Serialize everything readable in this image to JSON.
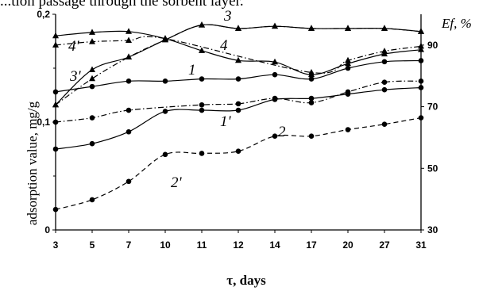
{
  "caption": "...tion passage through the sorbent layer.",
  "chart_data": {
    "type": "line",
    "xlabel": "τ, days",
    "ylabel": "adsorption value, mg/g",
    "y2label": "Ef, %",
    "categories": [
      "3",
      "5",
      "7",
      "10",
      "11",
      "12",
      "14",
      "17",
      "20",
      "27",
      "31"
    ],
    "ylim": [
      0,
      0.2
    ],
    "y_ticks": [
      "0",
      "0,1",
      "0,2"
    ],
    "y2lim": [
      30,
      100
    ],
    "y2_ticks": [
      "30",
      "50",
      "70",
      "90"
    ],
    "series": [
      {
        "name": "1",
        "axis": "left",
        "line": "solid",
        "marker": "circle",
        "values": [
          0.128,
          0.133,
          0.138,
          0.138,
          0.14,
          0.14,
          0.144,
          0.14,
          0.15,
          0.156,
          0.157
        ]
      },
      {
        "name": "1'",
        "axis": "left",
        "line": "dashdot",
        "marker": "circle",
        "values": [
          0.1,
          0.104,
          0.111,
          null,
          0.116,
          0.117,
          0.122,
          0.118,
          0.128,
          0.137,
          0.138
        ]
      },
      {
        "name": "2",
        "axis": "left",
        "line": "solid",
        "marker": "circle",
        "values": [
          0.075,
          0.08,
          0.091,
          0.11,
          0.111,
          0.111,
          0.121,
          0.122,
          0.126,
          0.13,
          0.132
        ]
      },
      {
        "name": "2'",
        "axis": "left",
        "line": "dashed",
        "marker": "circle",
        "values": [
          0.019,
          0.028,
          0.045,
          0.07,
          0.071,
          0.073,
          0.087,
          0.087,
          0.093,
          0.098,
          0.104
        ]
      },
      {
        "name": "3",
        "axis": "right",
        "line": "solid",
        "marker": "triangle",
        "values": [
          70.6,
          82.0,
          86.1,
          91.7,
          96.5,
          95.4,
          96.1,
          95.4,
          95.4,
          95.4,
          94.4
        ]
      },
      {
        "name": "3'",
        "axis": "right",
        "line": "dashdot",
        "marker": "triangle",
        "values": [
          70.6,
          79.1,
          86.1,
          91.7,
          96.5,
          95.4,
          96.1,
          95.4,
          95.4,
          95.4,
          94.4
        ]
      },
      {
        "name": "4",
        "axis": "right",
        "line": "solid",
        "marker": "triangle",
        "values": [
          93.0,
          94.1,
          94.4,
          92.1,
          88.2,
          85.0,
          84.5,
          80.4,
          84.0,
          87.1,
          88.5
        ]
      },
      {
        "name": "4'",
        "axis": "right",
        "line": "dashdot",
        "marker": "triangle",
        "values": [
          90.0,
          91.1,
          91.5,
          92.1,
          null,
          null,
          null,
          81.1,
          85.0,
          88.0,
          89.6
        ]
      }
    ]
  }
}
